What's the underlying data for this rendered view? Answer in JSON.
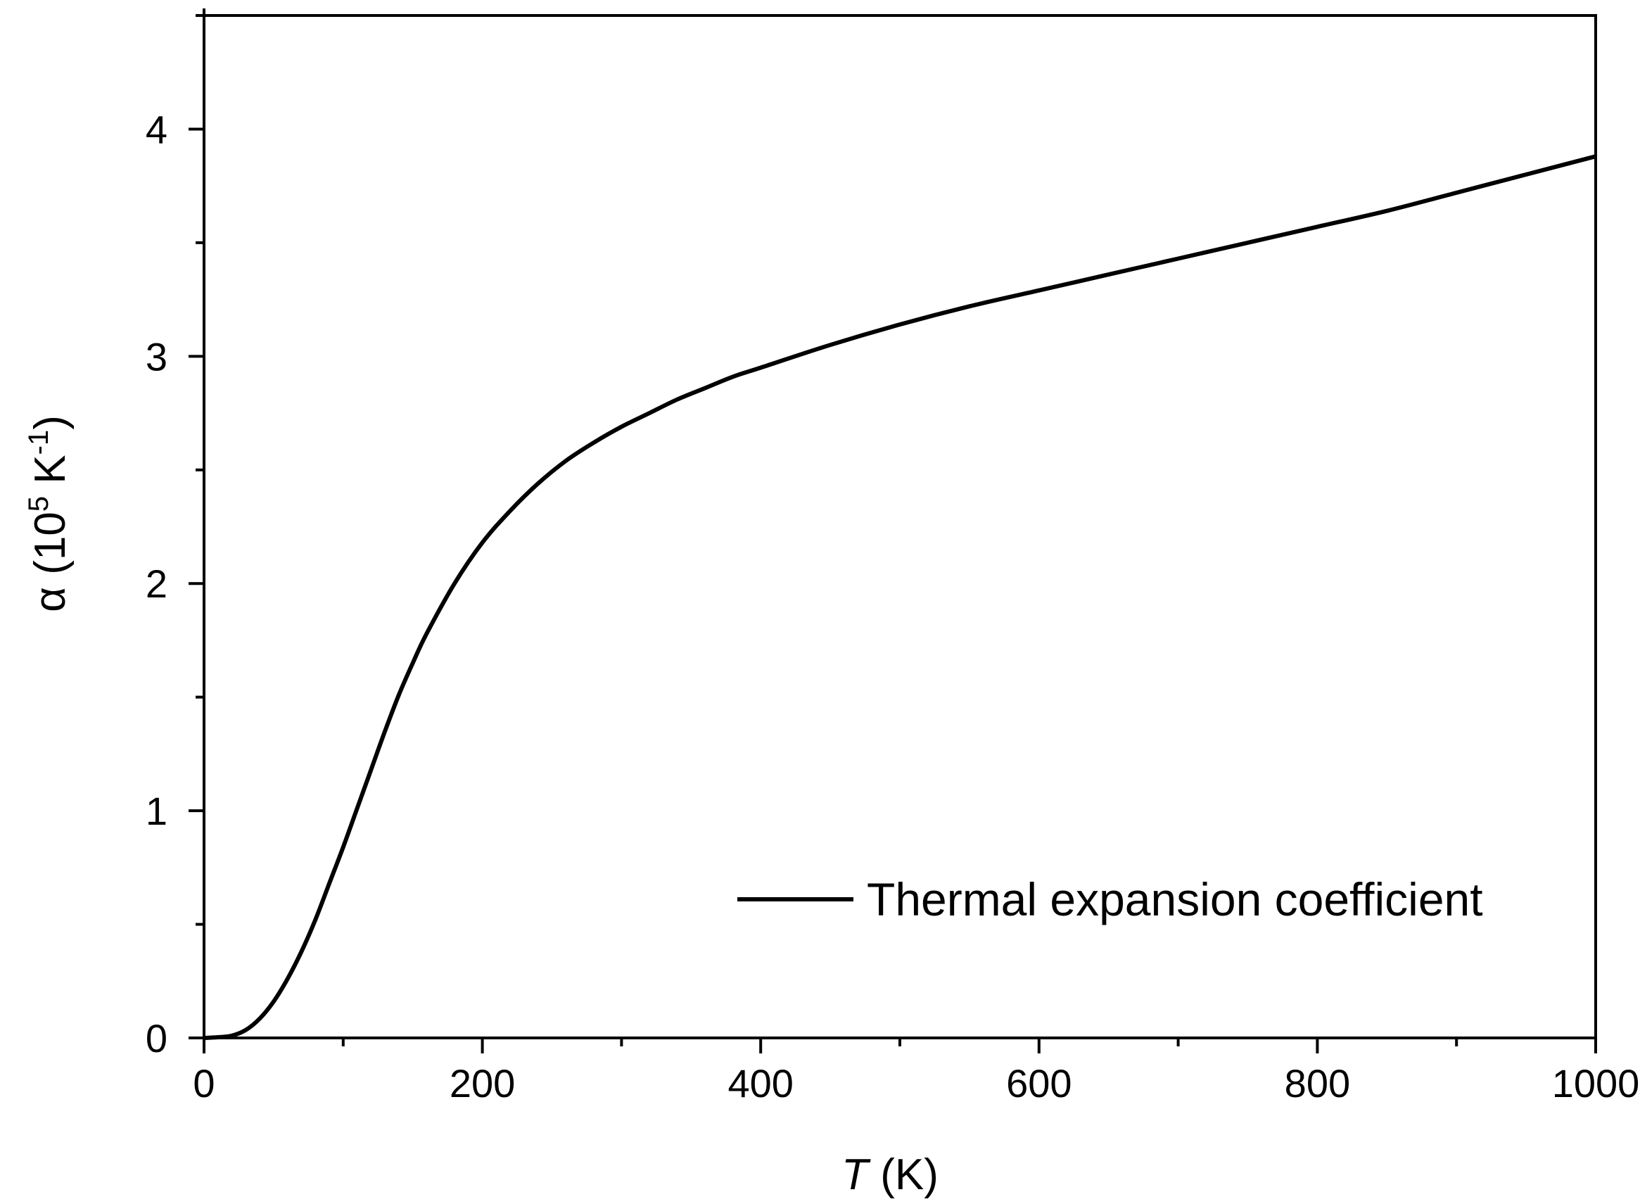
{
  "chart_data": {
    "type": "line",
    "xlabel": {
      "var": "T",
      "unit": " (K)"
    },
    "ylabel": {
      "sym": "α",
      "pre": " (10",
      "exp": "5",
      "mid": " K",
      "unit_exp": "-1",
      "post": ")"
    },
    "xlim": [
      0,
      1000
    ],
    "ylim": [
      0,
      4.5
    ],
    "x_ticks": [
      0,
      200,
      400,
      600,
      800,
      1000
    ],
    "x_tick_labels": [
      "0",
      "200",
      "400",
      "600",
      "800",
      "1000"
    ],
    "x_minor_step": 100,
    "y_ticks": [
      0,
      1,
      2,
      3,
      4
    ],
    "y_tick_labels": [
      "0",
      "1",
      "2",
      "3",
      "4"
    ],
    "y_minor_step": 0.5,
    "grid": false,
    "legend_position": "bottom-right",
    "line_color": "#000000",
    "series": [
      {
        "name": "Thermal expansion coefficient",
        "x": [
          0,
          10,
          20,
          30,
          40,
          50,
          60,
          70,
          80,
          90,
          100,
          110,
          120,
          130,
          140,
          150,
          160,
          180,
          200,
          220,
          240,
          260,
          280,
          300,
          320,
          340,
          360,
          380,
          400,
          450,
          500,
          550,
          600,
          650,
          700,
          750,
          800,
          850,
          900,
          950,
          1000
        ],
        "y": [
          0.0,
          0.003,
          0.01,
          0.035,
          0.085,
          0.16,
          0.26,
          0.38,
          0.52,
          0.68,
          0.84,
          1.01,
          1.18,
          1.35,
          1.51,
          1.65,
          1.78,
          2.0,
          2.18,
          2.32,
          2.44,
          2.54,
          2.62,
          2.69,
          2.75,
          2.81,
          2.86,
          2.91,
          2.95,
          3.05,
          3.14,
          3.22,
          3.29,
          3.36,
          3.43,
          3.5,
          3.57,
          3.64,
          3.72,
          3.8,
          3.88
        ]
      }
    ]
  }
}
